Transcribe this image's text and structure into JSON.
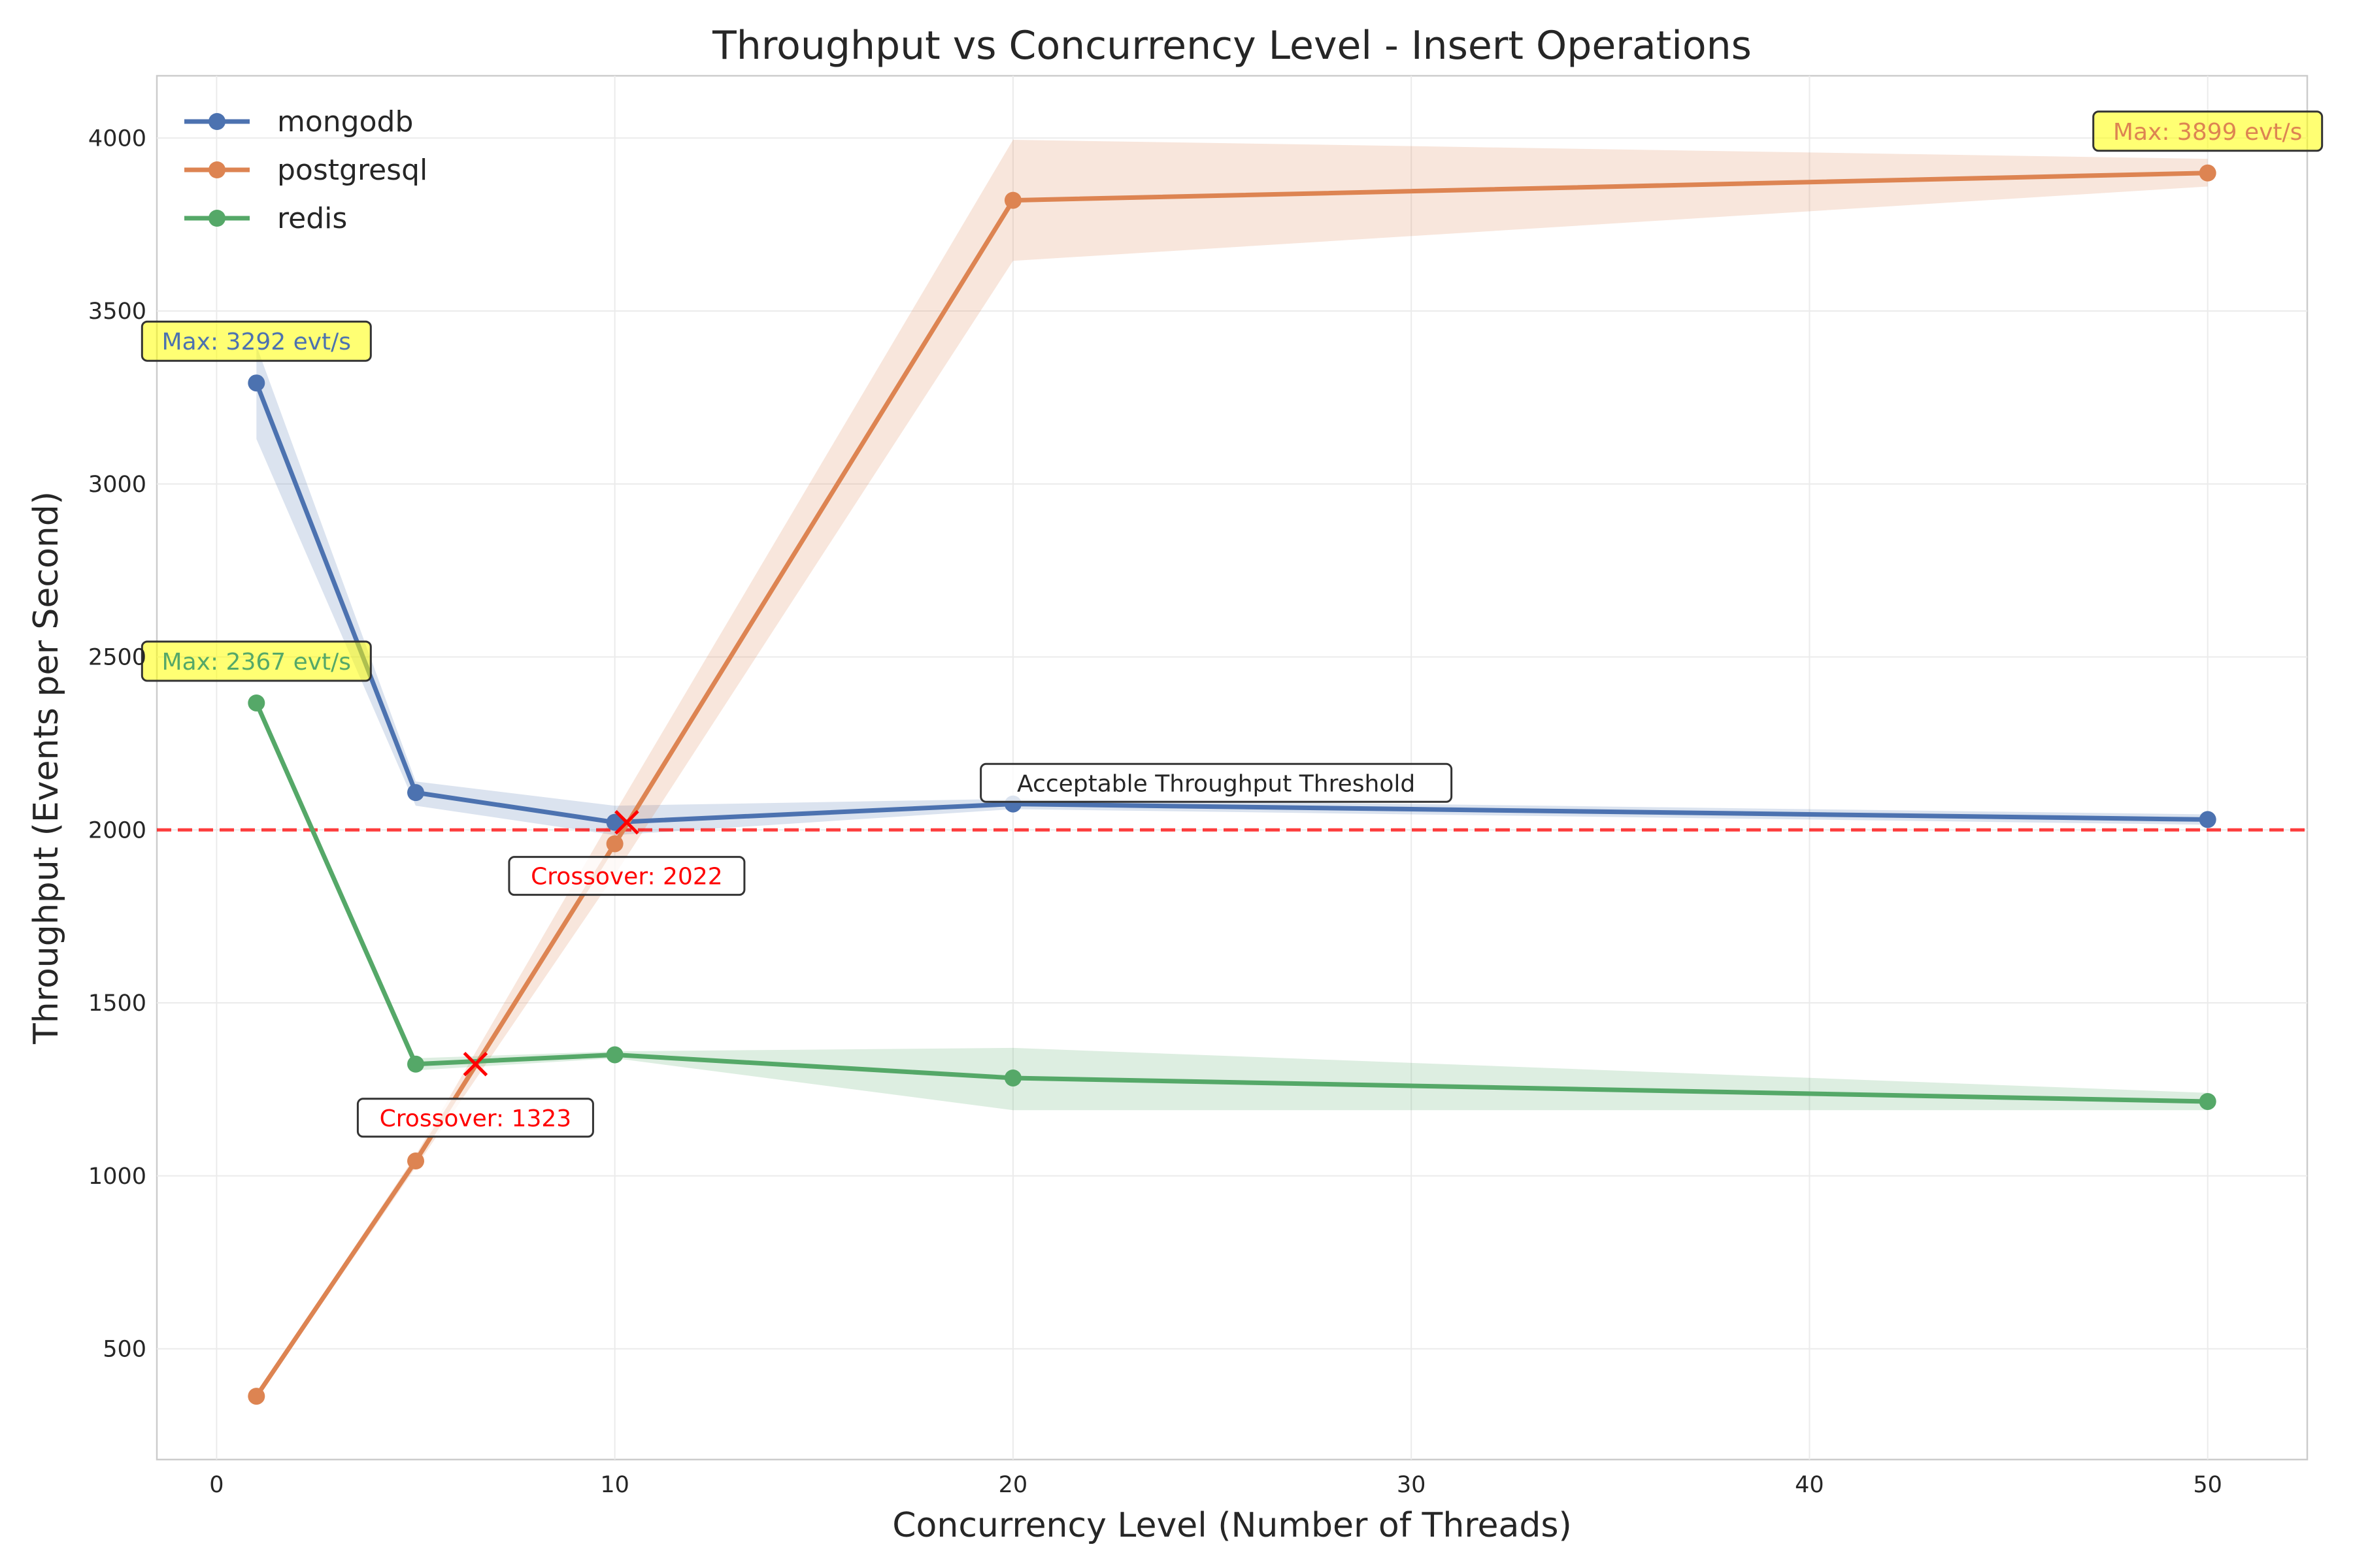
{
  "chart_data": {
    "type": "line",
    "title": "Throughput vs Concurrency Level - Insert Operations",
    "xlabel": "Concurrency Level (Number of Threads)",
    "ylabel": "Throughput (Events per Second)",
    "xlim": [
      -1.5,
      52.5
    ],
    "ylim": [
      180,
      4180
    ],
    "xticks": [
      0,
      10,
      20,
      30,
      40,
      50
    ],
    "yticks": [
      500,
      1000,
      1500,
      2000,
      2500,
      3000,
      3500,
      4000
    ],
    "grid": true,
    "legend_position": "upper-left",
    "x": [
      1,
      5,
      10,
      20,
      50
    ],
    "series": [
      {
        "name": "mongodb",
        "color": "#4c72b0",
        "values": [
          3292,
          2108,
          2022,
          2075,
          2030
        ],
        "band_upper": [
          3400,
          2140,
          2070,
          2090,
          2045
        ],
        "band_lower": [
          3130,
          2070,
          1985,
          2060,
          2015
        ]
      },
      {
        "name": "postgresql",
        "color": "#dd8452",
        "values": [
          363,
          1043,
          1960,
          3820,
          3899
        ],
        "band_upper": [
          370,
          1060,
          2050,
          3995,
          3940
        ],
        "band_lower": [
          355,
          1025,
          1870,
          3645,
          3860
        ]
      },
      {
        "name": "redis",
        "color": "#55a868",
        "values": [
          2367,
          1323,
          1350,
          1283,
          1215
        ],
        "band_upper": [
          2380,
          1340,
          1360,
          1370,
          1240
        ],
        "band_lower": [
          2350,
          1305,
          1340,
          1190,
          1190
        ]
      }
    ],
    "threshold": {
      "value": 2000,
      "color": "#ff0000",
      "label": "Acceptable Throughput Threshold"
    },
    "max_labels": [
      {
        "series": "mongodb",
        "x": 1,
        "y": 3292,
        "text": "Max: 3292 evt/s"
      },
      {
        "series": "postgresql",
        "x": 50,
        "y": 3899,
        "text": "Max: 3899 evt/s"
      },
      {
        "series": "redis",
        "x": 1,
        "y": 2367,
        "text": "Max: 2367 evt/s"
      }
    ],
    "crossovers": [
      {
        "x": 10.3,
        "y": 2022,
        "text": "Crossover: 2022"
      },
      {
        "x": 6.5,
        "y": 1323,
        "text": "Crossover: 1323"
      }
    ]
  }
}
